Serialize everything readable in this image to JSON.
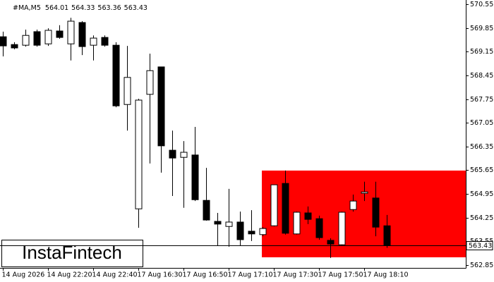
{
  "chart_data": {
    "type": "candlestick",
    "title": "#MA,M5",
    "categories": [
      "14 Aug 2026",
      null,
      null,
      null,
      "14 Aug 22:20",
      null,
      null,
      null,
      "14 Aug 22:40",
      null,
      null,
      null,
      "17 Aug 16:30",
      null,
      null,
      null,
      "17 Aug 16:50",
      null,
      null,
      null,
      "17 Aug 17:10",
      null,
      null,
      null,
      "17 Aug 17:30",
      null,
      null,
      null,
      "17 Aug 17:50",
      null,
      null,
      null,
      "17 Aug 18:10",
      null,
      null
    ],
    "open": [
      569.59,
      569.36,
      569.34,
      569.74,
      569.38,
      569.76,
      569.38,
      570.01,
      569.34,
      569.57,
      569.34,
      567.59,
      564.51,
      567.89,
      568.7,
      566.24,
      566.03,
      566.1,
      564.76,
      564.14,
      563.99,
      564.12,
      563.85,
      563.75,
      564.01,
      565.26,
      563.77,
      564.39,
      564.22,
      563.58,
      563.45,
      564.49,
      564.97,
      564.83,
      564.01
    ],
    "high": [
      569.74,
      569.43,
      569.8,
      569.8,
      569.84,
      569.93,
      570.15,
      570.05,
      569.63,
      569.63,
      569.43,
      569.32,
      567.76,
      569.09,
      568.7,
      566.82,
      566.51,
      566.93,
      565.72,
      564.39,
      565.1,
      564.43,
      564.47,
      563.97,
      565.22,
      565.64,
      564.43,
      564.58,
      564.31,
      563.64,
      564.43,
      564.93,
      565.31,
      565.31,
      564.33
    ],
    "low": [
      569.01,
      569.22,
      569.3,
      569.3,
      569.32,
      569.53,
      568.89,
      569.05,
      568.89,
      569.3,
      567.51,
      566.82,
      563.95,
      565.85,
      565.58,
      564.89,
      564.54,
      564.74,
      564.16,
      563.43,
      563.39,
      563.43,
      563.56,
      563.7,
      563.99,
      563.75,
      563.75,
      564.06,
      563.6,
      563.06,
      563.43,
      564.43,
      564.74,
      563.7,
      563.36
    ],
    "close": [
      569.32,
      569.26,
      569.63,
      569.34,
      569.78,
      569.57,
      570.05,
      569.3,
      569.55,
      569.34,
      567.55,
      568.39,
      567.72,
      568.59,
      566.37,
      566.01,
      566.18,
      564.78,
      564.18,
      564.06,
      564.12,
      563.6,
      563.77,
      563.93,
      565.22,
      563.79,
      564.41,
      564.2,
      563.66,
      563.47,
      564.41,
      564.74,
      565.01,
      563.97,
      563.43
    ],
    "up_color": "#ffffff",
    "down_color": "#000000",
    "zone": {
      "high": 565.64,
      "low": 563.08,
      "color": "#ff0000"
    },
    "last_price": 563.43,
    "ylim": [
      562.85,
      570.55
    ],
    "yticks": [
      570.55,
      569.85,
      569.15,
      568.45,
      567.75,
      567.05,
      566.35,
      565.65,
      564.95,
      564.25,
      563.55,
      562.85
    ],
    "watermark": "InstaFintech"
  }
}
